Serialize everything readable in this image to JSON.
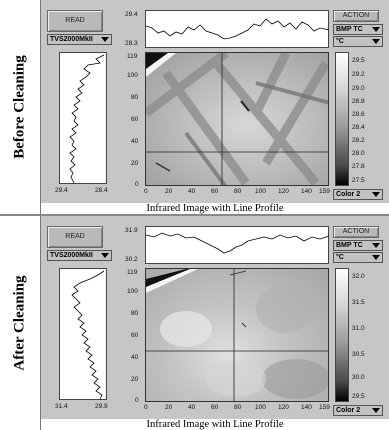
{
  "panels": [
    {
      "side_label": "Before Cleaning",
      "caption": "Infrared Image with Line Profile",
      "read_label": "READ",
      "camera": "TVS2000MkII",
      "action_label": "ACTION",
      "mode": "BMP TC",
      "unit": "°C",
      "palette": "Color 2",
      "top_profile": {
        "ymax": "29.4",
        "ymin": "28.3"
      },
      "left_profile": {
        "xleft": "29.4",
        "xright": "28.4"
      },
      "y_ticks": [
        "119",
        "100",
        "80",
        "60",
        "40",
        "20",
        "0"
      ],
      "x_ticks": [
        "0",
        "20",
        "40",
        "60",
        "80",
        "100",
        "120",
        "140",
        "159"
      ],
      "colorbar_ticks": [
        "29.5",
        "29.2",
        "29.0",
        "28.8",
        "28.6",
        "28.4",
        "28.2",
        "28.0",
        "27.8",
        "27.5"
      ]
    },
    {
      "side_label": "After Cleaning",
      "caption": "Infrared Image with Line Profile",
      "read_label": "READ",
      "camera": "TVS2000MkII",
      "action_label": "ACTION",
      "mode": "BMP TC",
      "unit": "°C",
      "palette": "Color 2",
      "top_profile": {
        "ymax": "31.9",
        "ymin": "30.2"
      },
      "left_profile": {
        "xleft": "31.4",
        "xright": "29.9"
      },
      "y_ticks": [
        "119",
        "100",
        "80",
        "60",
        "40",
        "20",
        "0"
      ],
      "x_ticks": [
        "0",
        "20",
        "40",
        "60",
        "80",
        "100",
        "120",
        "140",
        "159"
      ],
      "colorbar_ticks": [
        "32.0",
        "31.5",
        "31.0",
        "30.5",
        "30.0",
        "29.5"
      ]
    }
  ],
  "colors": {
    "panel_bg": "#c6c6c6",
    "plot_bg": "#ffffff"
  }
}
